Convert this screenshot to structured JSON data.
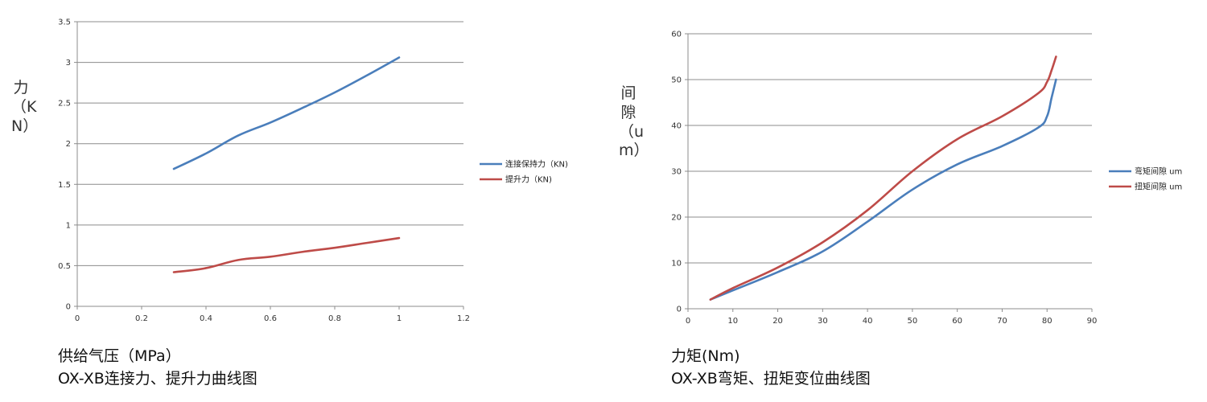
{
  "chart_data": [
    {
      "type": "line",
      "title": "",
      "caption": "OX-XB连接力、提升力曲线图",
      "xlabel": "供给气压（MPa）",
      "ylabel": "力（KN）",
      "xlim": [
        0,
        1.2
      ],
      "ylim": [
        0,
        3.5
      ],
      "x_ticks": [
        "0",
        "0.2",
        "0.4",
        "0.6",
        "0.8",
        "1",
        "1.2"
      ],
      "y_ticks": [
        "0",
        "0.5",
        "1",
        "1.5",
        "2",
        "2.5",
        "3",
        "3.5"
      ],
      "grid": true,
      "legend_position": "right",
      "series": [
        {
          "name": "连接保持力（KN)",
          "color": "#4a7ebb",
          "x": [
            0.3,
            0.4,
            0.5,
            0.6,
            0.7,
            0.8,
            0.9,
            1.0
          ],
          "y": [
            1.69,
            1.88,
            2.1,
            2.26,
            2.44,
            2.63,
            2.84,
            3.06
          ]
        },
        {
          "name": "提升力（KN)",
          "color": "#be4b48",
          "x": [
            0.3,
            0.4,
            0.5,
            0.6,
            0.7,
            0.8,
            0.9,
            1.0
          ],
          "y": [
            0.42,
            0.47,
            0.57,
            0.61,
            0.67,
            0.72,
            0.78,
            0.84
          ]
        }
      ]
    },
    {
      "type": "line",
      "title": "",
      "caption": "OX-XB弯矩、扭矩变位曲线图",
      "xlabel": "力矩(Nm)",
      "ylabel": "间隙（um）",
      "xlim": [
        0,
        90
      ],
      "ylim": [
        0,
        60
      ],
      "x_ticks": [
        "0",
        "10",
        "20",
        "30",
        "40",
        "50",
        "60",
        "70",
        "80",
        "90"
      ],
      "y_ticks": [
        "0",
        "10",
        "20",
        "30",
        "40",
        "50",
        "60"
      ],
      "grid": true,
      "legend_position": "right",
      "series": [
        {
          "name": "弯矩间隙 um",
          "color": "#4a7ebb",
          "x": [
            5,
            10,
            20,
            30,
            40,
            50,
            60,
            70,
            78,
            80,
            81,
            82
          ],
          "y": [
            2,
            4,
            8,
            12.5,
            19,
            26,
            31.5,
            35.5,
            39.5,
            42,
            46,
            50
          ]
        },
        {
          "name": "扭矩间隙 um",
          "color": "#be4b48",
          "x": [
            5,
            10,
            20,
            30,
            40,
            50,
            60,
            70,
            78,
            80,
            81,
            82
          ],
          "y": [
            2,
            4.5,
            9,
            14.5,
            21.5,
            30,
            37,
            42,
            47,
            49.5,
            52,
            55
          ]
        }
      ]
    }
  ]
}
